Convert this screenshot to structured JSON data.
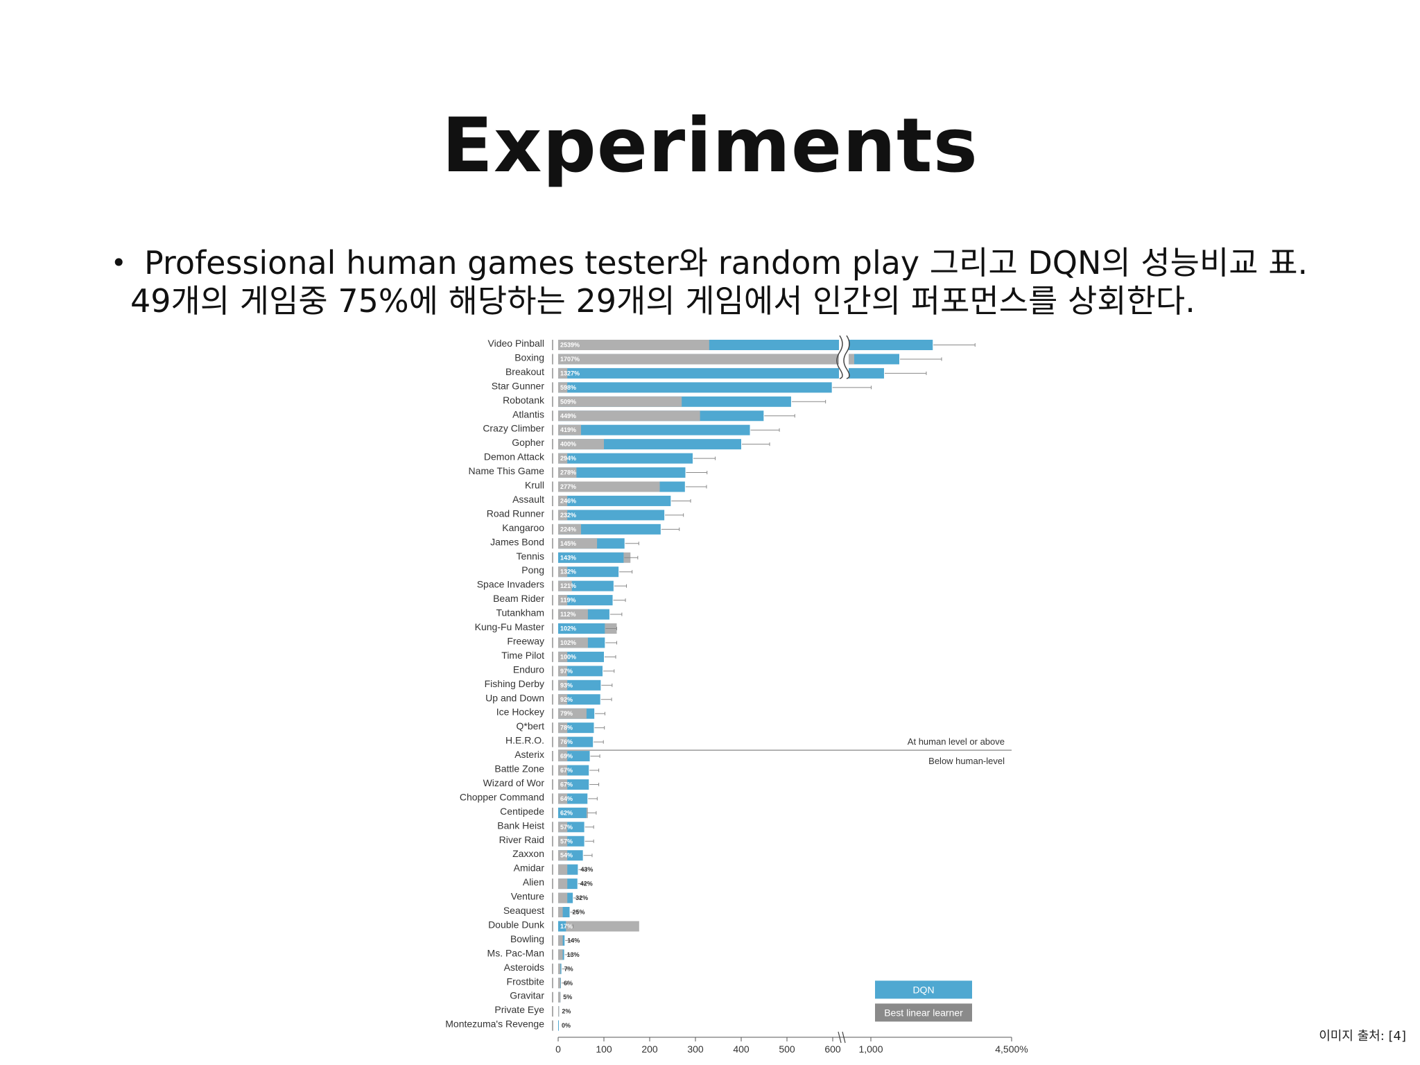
{
  "slide": {
    "title": "Experiments",
    "bullet_line1": "Professional human games tester와 random play 그리고 DQN의 성능비교 표.",
    "bullet_line2": "49개의 게임중 75%에 해당하는 29개의 게임에서 인간의 퍼포먼스를 상회한다.",
    "credit": "이미지 출처: [4]"
  },
  "chart_data": {
    "type": "bar",
    "orientation": "horizontal",
    "xlim": [
      0,
      4500
    ],
    "x_ticks": [
      "0",
      "100",
      "200",
      "300",
      "400",
      "500",
      "600",
      "1,000",
      "4,500%"
    ],
    "axis_break": true,
    "threshold_upper_label": "At human level or above",
    "threshold_lower_label": "Below human-level",
    "legend": {
      "dqn": "DQN",
      "linear": "Best linear learner",
      "placement": "bottom-right"
    },
    "colors": {
      "dqn": "#4fa8d1",
      "linear": "#b0b0b0"
    },
    "games": [
      {
        "name": "Video Pinball",
        "dqn": 2539,
        "linear": 330,
        "label": "2539%"
      },
      {
        "name": "Boxing",
        "dqn": 1707,
        "linear": 680,
        "label": "1707%"
      },
      {
        "name": "Breakout",
        "dqn": 1327,
        "linear": 20,
        "label": "1327%"
      },
      {
        "name": "Star Gunner",
        "dqn": 598,
        "linear": 20,
        "label": "598%"
      },
      {
        "name": "Robotank",
        "dqn": 509,
        "linear": 270,
        "label": "509%"
      },
      {
        "name": "Atlantis",
        "dqn": 449,
        "linear": 310,
        "label": "449%"
      },
      {
        "name": "Crazy Climber",
        "dqn": 419,
        "linear": 50,
        "label": "419%"
      },
      {
        "name": "Gopher",
        "dqn": 400,
        "linear": 100,
        "label": "400%"
      },
      {
        "name": "Demon Attack",
        "dqn": 294,
        "linear": 20,
        "label": "294%"
      },
      {
        "name": "Name This Game",
        "dqn": 278,
        "linear": 40,
        "label": "278%"
      },
      {
        "name": "Krull",
        "dqn": 277,
        "linear": 222,
        "label": "277%"
      },
      {
        "name": "Assault",
        "dqn": 246,
        "linear": 20,
        "label": "246%"
      },
      {
        "name": "Road Runner",
        "dqn": 232,
        "linear": 20,
        "label": "232%"
      },
      {
        "name": "Kangaroo",
        "dqn": 224,
        "linear": 50,
        "label": "224%"
      },
      {
        "name": "James Bond",
        "dqn": 145,
        "linear": 85,
        "label": "145%"
      },
      {
        "name": "Tennis",
        "dqn": 143,
        "linear": 158,
        "label": "143%"
      },
      {
        "name": "Pong",
        "dqn": 132,
        "linear": 20,
        "label": "132%"
      },
      {
        "name": "Space Invaders",
        "dqn": 121,
        "linear": 30,
        "label": "121%"
      },
      {
        "name": "Beam Rider",
        "dqn": 119,
        "linear": 20,
        "label": "119%"
      },
      {
        "name": "Tutankham",
        "dqn": 112,
        "linear": 65,
        "label": "112%"
      },
      {
        "name": "Kung-Fu Master",
        "dqn": 102,
        "linear": 128,
        "label": "102%"
      },
      {
        "name": "Freeway",
        "dqn": 102,
        "linear": 65,
        "label": "102%"
      },
      {
        "name": "Time Pilot",
        "dqn": 100,
        "linear": 20,
        "label": "100%"
      },
      {
        "name": "Enduro",
        "dqn": 97,
        "linear": 20,
        "label": "97%"
      },
      {
        "name": "Fishing Derby",
        "dqn": 93,
        "linear": 20,
        "label": "93%"
      },
      {
        "name": "Up and Down",
        "dqn": 92,
        "linear": 20,
        "label": "92%"
      },
      {
        "name": "Ice Hockey",
        "dqn": 79,
        "linear": 62,
        "label": "79%"
      },
      {
        "name": "Q*bert",
        "dqn": 78,
        "linear": 20,
        "label": "78%"
      },
      {
        "name": "H.E.R.O.",
        "dqn": 76,
        "linear": 20,
        "label": "76%"
      },
      {
        "name": "Asterix",
        "dqn": 69,
        "linear": 20,
        "label": "69%"
      },
      {
        "name": "Battle Zone",
        "dqn": 67,
        "linear": 20,
        "label": "67%"
      },
      {
        "name": "Wizard of Wor",
        "dqn": 67,
        "linear": 20,
        "label": "67%"
      },
      {
        "name": "Chopper Command",
        "dqn": 64,
        "linear": 20,
        "label": "64%"
      },
      {
        "name": "Centipede",
        "dqn": 62,
        "linear": 65,
        "label": "62%"
      },
      {
        "name": "Bank Heist",
        "dqn": 57,
        "linear": 20,
        "label": "57%"
      },
      {
        "name": "River Raid",
        "dqn": 57,
        "linear": 20,
        "label": "57%"
      },
      {
        "name": "Zaxxon",
        "dqn": 54,
        "linear": 20,
        "label": "54%"
      },
      {
        "name": "Amidar",
        "dqn": 43,
        "linear": 20,
        "label": "43%"
      },
      {
        "name": "Alien",
        "dqn": 42,
        "linear": 20,
        "label": "42%"
      },
      {
        "name": "Venture",
        "dqn": 32,
        "linear": 20,
        "label": "32%"
      },
      {
        "name": "Seaquest",
        "dqn": 25,
        "linear": 10,
        "label": "25%"
      },
      {
        "name": "Double Dunk",
        "dqn": 17,
        "linear": 177,
        "label": "17%"
      },
      {
        "name": "Bowling",
        "dqn": 14,
        "linear": 10,
        "label": "14%"
      },
      {
        "name": "Ms. Pac-Man",
        "dqn": 13,
        "linear": 10,
        "label": "13%"
      },
      {
        "name": "Asteroids",
        "dqn": 7,
        "linear": 5,
        "label": "7%"
      },
      {
        "name": "Frostbite",
        "dqn": 6,
        "linear": 5,
        "label": "6%"
      },
      {
        "name": "Gravitar",
        "dqn": 5,
        "linear": 5,
        "label": "5%"
      },
      {
        "name": "Private Eye",
        "dqn": 2,
        "linear": 2,
        "label": "2%"
      },
      {
        "name": "Montezuma's Revenge",
        "dqn": 0,
        "linear": 0,
        "label": "0%"
      }
    ]
  }
}
